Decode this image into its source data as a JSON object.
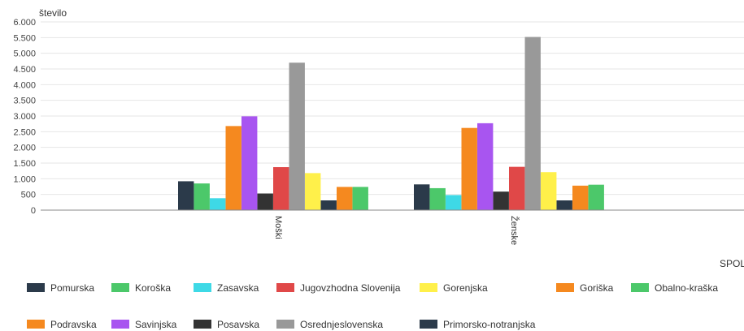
{
  "chart_data": {
    "type": "bar",
    "ylabel": "število",
    "xlabel": "SPOL",
    "ylim": [
      0,
      6000
    ],
    "yticks": [
      0,
      500,
      1000,
      1500,
      2000,
      2500,
      3000,
      3500,
      4000,
      4500,
      5000,
      5500,
      6000
    ],
    "ytick_labels": [
      "0",
      "500",
      "1.000",
      "1.500",
      "2.000",
      "2.500",
      "3.000",
      "3.500",
      "4.000",
      "4.500",
      "5.000",
      "5.500",
      "6.000"
    ],
    "grid": true,
    "legend_position": "bottom",
    "categories": [
      "Moški",
      "Ženske"
    ],
    "series": [
      {
        "name": "Pomurska",
        "color": "#2b3a4a",
        "values": [
          920,
          820
        ]
      },
      {
        "name": "Koroška",
        "color": "#4cc86a",
        "values": [
          850,
          700
        ]
      },
      {
        "name": "Zasavska",
        "color": "#3ed9e6",
        "values": [
          380,
          480
        ]
      },
      {
        "name": "Podravska",
        "color": "#f5891f",
        "values": [
          2680,
          2620
        ]
      },
      {
        "name": "Savinjska",
        "color": "#a855f0",
        "values": [
          2990,
          2770
        ]
      },
      {
        "name": "Posavska",
        "color": "#333333",
        "values": [
          530,
          590
        ]
      },
      {
        "name": "Jugovzhodna Slovenija",
        "color": "#e04848",
        "values": [
          1370,
          1380
        ]
      },
      {
        "name": "Osrednjeslovenska",
        "color": "#999999",
        "values": [
          4700,
          5520
        ]
      },
      {
        "name": "Gorenjska",
        "color": "#fff04a",
        "values": [
          1180,
          1210
        ]
      },
      {
        "name": "Primorsko-notranjska",
        "color": "#2b3a4a",
        "values": [
          310,
          310
        ]
      },
      {
        "name": "Goriška",
        "color": "#f5891f",
        "values": [
          740,
          780
        ]
      },
      {
        "name": "Obalno-kraška",
        "color": "#4cc86a",
        "values": [
          740,
          810
        ]
      }
    ],
    "legend_rows": [
      [
        "Pomurska",
        "Koroška",
        "Zasavska",
        "Jugovzhodna Slovenija",
        "Gorenjska",
        "Goriška",
        "Obalno-kraška"
      ],
      [
        "Podravska",
        "Savinjska",
        "Posavska",
        "Osrednjeslovenska",
        "Primorsko-notranjska"
      ]
    ]
  }
}
